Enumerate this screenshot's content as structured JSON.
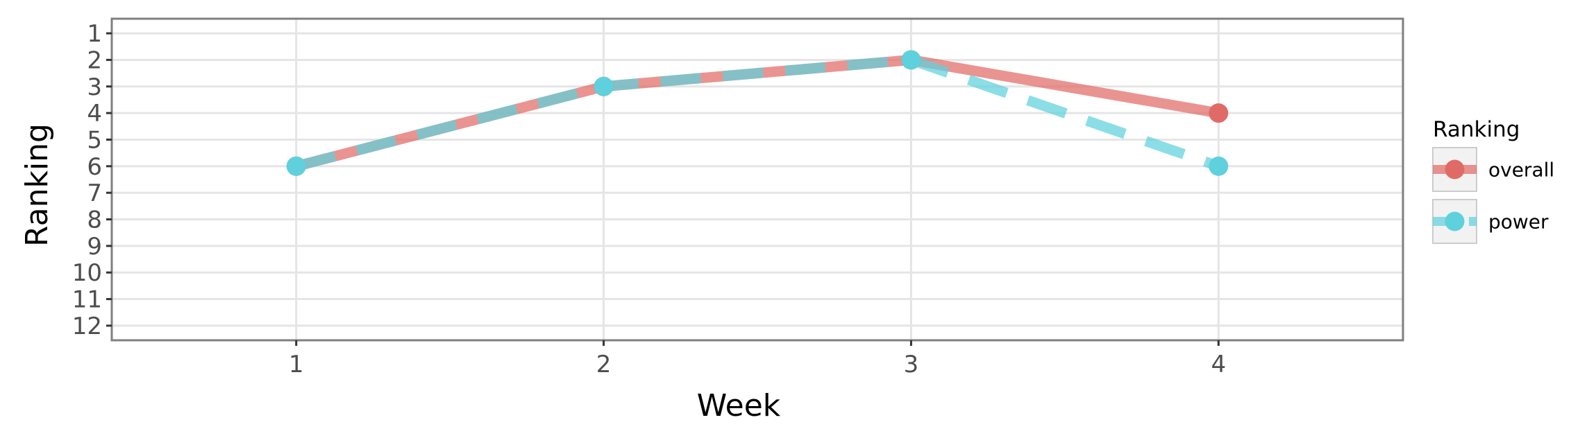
{
  "chart_data": {
    "type": "line",
    "xlabel": "Week",
    "ylabel": "Ranking",
    "x": [
      1,
      2,
      3,
      4
    ],
    "xlim": [
      0.4,
      4.6
    ],
    "ylim": [
      12.55,
      0.45
    ],
    "y_reversed": true,
    "xticks": [
      "1",
      "2",
      "3",
      "4"
    ],
    "yticks": [
      "1",
      "2",
      "3",
      "4",
      "5",
      "6",
      "7",
      "8",
      "9",
      "10",
      "11",
      "12"
    ],
    "grid": true,
    "legend": {
      "title": "Ranking",
      "placement": "right"
    },
    "series": [
      {
        "name": "overall",
        "values": [
          6,
          3,
          2,
          4
        ],
        "color": "#E06B66",
        "line_style": "solid"
      },
      {
        "name": "power",
        "values": [
          6,
          3,
          2,
          6
        ],
        "color": "#5ED1DD",
        "line_style": "dashed"
      }
    ]
  }
}
